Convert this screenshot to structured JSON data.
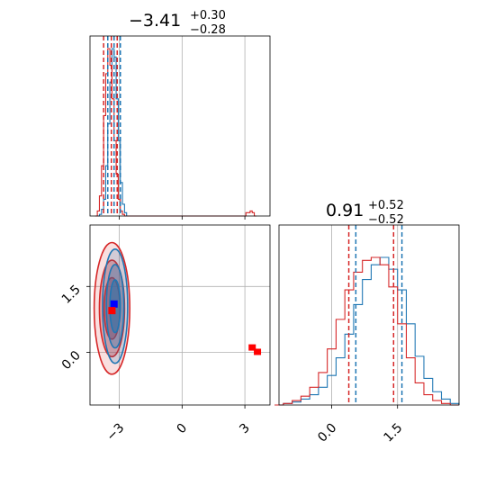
{
  "chart_data": {
    "type": "corner",
    "parameters": 2,
    "colors": {
      "series_a": "#1f77b4",
      "series_b": "#d62728"
    },
    "titles": [
      {
        "value": "−3.41",
        "upper": "+0.30",
        "lower": "−0.28"
      },
      {
        "value": "0.91",
        "upper": "+0.52",
        "lower": "−0.52"
      }
    ],
    "param1": {
      "range": [
        -4.4,
        4.2
      ],
      "ticks": [
        -3,
        0,
        3
      ],
      "tick_labels": [
        "−3",
        "0",
        "3"
      ],
      "quantiles_blue": [
        -3.55,
        -3.25,
        -2.95
      ],
      "quantiles_red": [
        -3.75,
        -3.38,
        -3.1
      ]
    },
    "param2": {
      "range": [
        -1.2,
        2.9
      ],
      "ticks": [
        0.0,
        1.5
      ],
      "tick_labels": [
        "0.0",
        "1.5"
      ],
      "quantiles_blue": [
        0.55,
        1.6
      ],
      "quantiles_red": [
        0.39,
        1.41
      ]
    },
    "grid": true,
    "series": [
      {
        "color": "#1f77b4",
        "hist1_x": [
          -4.0,
          -3.9,
          -3.8,
          -3.7,
          -3.6,
          -3.5,
          -3.4,
          -3.3,
          -3.2,
          -3.1,
          -3.0,
          -2.9,
          -2.8,
          -2.7,
          -2.6
        ],
        "hist1_y": [
          0.0,
          0.01,
          0.04,
          0.1,
          0.3,
          0.55,
          0.8,
          1.0,
          0.95,
          0.7,
          0.45,
          0.2,
          0.07,
          0.02,
          0.0
        ],
        "hist2_x": [
          -1.2,
          -1.0,
          -0.8,
          -0.6,
          -0.4,
          -0.2,
          0.0,
          0.2,
          0.4,
          0.6,
          0.8,
          1.0,
          1.2,
          1.4,
          1.6,
          1.8,
          2.0,
          2.2,
          2.4,
          2.6,
          2.8
        ],
        "hist2_y": [
          0.0,
          0.01,
          0.02,
          0.04,
          0.07,
          0.12,
          0.2,
          0.32,
          0.48,
          0.68,
          0.85,
          0.95,
          1.0,
          0.92,
          0.78,
          0.55,
          0.33,
          0.18,
          0.09,
          0.04,
          0.01
        ],
        "median": [
          -3.25,
          1.1
        ],
        "contours": [
          {
            "cx": -3.2,
            "cy": 1.05,
            "rx": 0.6,
            "ry": 1.3
          },
          {
            "cx": -3.2,
            "cy": 1.05,
            "rx": 0.42,
            "ry": 0.95
          },
          {
            "cx": -3.2,
            "cy": 1.05,
            "rx": 0.25,
            "ry": 0.6
          }
        ]
      },
      {
        "color": "#d62728",
        "hist1_x": [
          -4.1,
          -4.0,
          -3.9,
          -3.8,
          -3.7,
          -3.6,
          -3.5,
          -3.4,
          -3.3,
          -3.2,
          -3.1,
          -3.0,
          -2.9,
          -2.8,
          -2.7,
          3.0,
          3.1,
          3.2,
          3.3,
          3.4,
          3.5
        ],
        "hist1_y": [
          0.0,
          0.03,
          0.12,
          0.3,
          0.6,
          0.85,
          1.0,
          0.9,
          0.7,
          0.45,
          0.25,
          0.1,
          0.03,
          0.01,
          0.0,
          0.0,
          0.02,
          0.02,
          0.03,
          0.02,
          0.0
        ],
        "hist2_x": [
          -1.2,
          -1.0,
          -0.8,
          -0.6,
          -0.4,
          -0.2,
          0.0,
          0.2,
          0.4,
          0.6,
          0.8,
          1.0,
          1.2,
          1.4,
          1.6,
          1.8,
          2.0,
          2.2,
          2.4,
          2.6,
          2.8
        ],
        "hist2_y": [
          0.0,
          0.01,
          0.03,
          0.06,
          0.12,
          0.22,
          0.38,
          0.58,
          0.78,
          0.9,
          0.98,
          1.0,
          0.95,
          0.8,
          0.55,
          0.32,
          0.15,
          0.07,
          0.03,
          0.01,
          0.0
        ],
        "median": [
          -3.35,
          0.95
        ],
        "contours": [
          {
            "cx": -3.35,
            "cy": 1.0,
            "rx": 0.85,
            "ry": 1.5
          },
          {
            "cx": -3.35,
            "cy": 1.0,
            "rx": 0.6,
            "ry": 1.1
          },
          {
            "cx": -3.35,
            "cy": 1.0,
            "rx": 0.38,
            "ry": 0.7
          }
        ],
        "outlier_cluster": [
          {
            "x": 3.35,
            "y": 0.1
          },
          {
            "x": 3.6,
            "y": 0.0
          }
        ]
      }
    ]
  }
}
